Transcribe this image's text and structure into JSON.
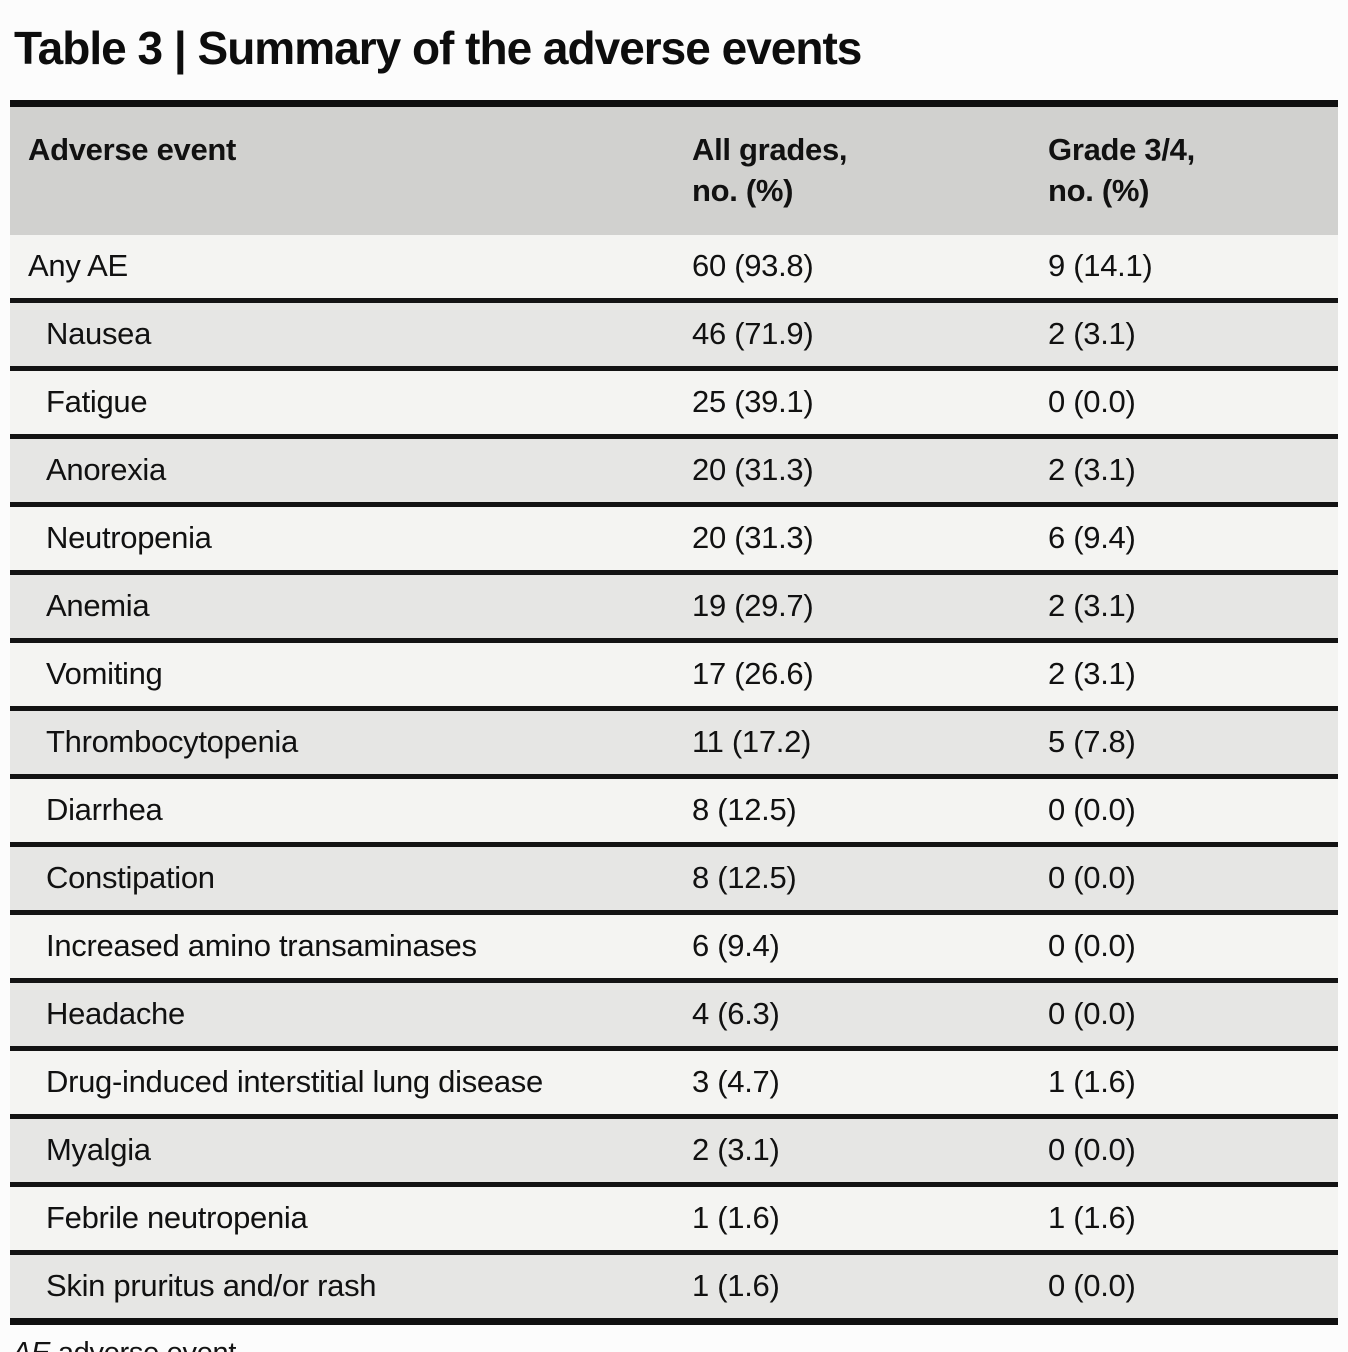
{
  "title": "Table 3 | Summary of the adverse events",
  "table": {
    "header": {
      "col1": "Adverse event",
      "col2_line1": "All grades,",
      "col2_line2": "no. (%)",
      "col3_line1": "Grade 3/4,",
      "col3_line2": "no. (%)"
    },
    "rows": [
      {
        "event": "Any AE",
        "all_grades": "60 (93.8)",
        "grade_3_4": "9 (14.1)"
      },
      {
        "event": "Nausea",
        "all_grades": "46 (71.9)",
        "grade_3_4": "2 (3.1)"
      },
      {
        "event": "Fatigue",
        "all_grades": "25 (39.1)",
        "grade_3_4": "0 (0.0)"
      },
      {
        "event": "Anorexia",
        "all_grades": "20 (31.3)",
        "grade_3_4": "2 (3.1)"
      },
      {
        "event": "Neutropenia",
        "all_grades": "20 (31.3)",
        "grade_3_4": "6 (9.4)"
      },
      {
        "event": "Anemia",
        "all_grades": "19 (29.7)",
        "grade_3_4": "2 (3.1)"
      },
      {
        "event": "Vomiting",
        "all_grades": "17 (26.6)",
        "grade_3_4": "2 (3.1)"
      },
      {
        "event": "Thrombocytopenia",
        "all_grades": "11 (17.2)",
        "grade_3_4": "5 (7.8)"
      },
      {
        "event": "Diarrhea",
        "all_grades": "8 (12.5)",
        "grade_3_4": "0 (0.0)"
      },
      {
        "event": "Constipation",
        "all_grades": "8 (12.5)",
        "grade_3_4": "0 (0.0)"
      },
      {
        "event": "Increased amino transaminases",
        "all_grades": "6 (9.4)",
        "grade_3_4": "0 (0.0)"
      },
      {
        "event": "Headache",
        "all_grades": "4 (6.3)",
        "grade_3_4": "0 (0.0)"
      },
      {
        "event": "Drug-induced interstitial lung disease",
        "all_grades": "3 (4.7)",
        "grade_3_4": "1 (1.6)"
      },
      {
        "event": "Myalgia",
        "all_grades": "2 (3.1)",
        "grade_3_4": "0 (0.0)"
      },
      {
        "event": "Febrile neutropenia",
        "all_grades": "1 (1.6)",
        "grade_3_4": "1 (1.6)"
      },
      {
        "event": "Skin pruritus and/or rash",
        "all_grades": "1 (1.6)",
        "grade_3_4": "0 (0.0)"
      }
    ]
  },
  "footnote": {
    "abbr": "AE",
    "text": " adverse event."
  },
  "colors": {
    "header_bg": "#d1d1cf",
    "row_light_bg": "#f4f4f2",
    "row_shaded_bg": "#e6e6e4",
    "border": "#131313",
    "page_bg": "#fcfcfc",
    "text": "#111111"
  }
}
